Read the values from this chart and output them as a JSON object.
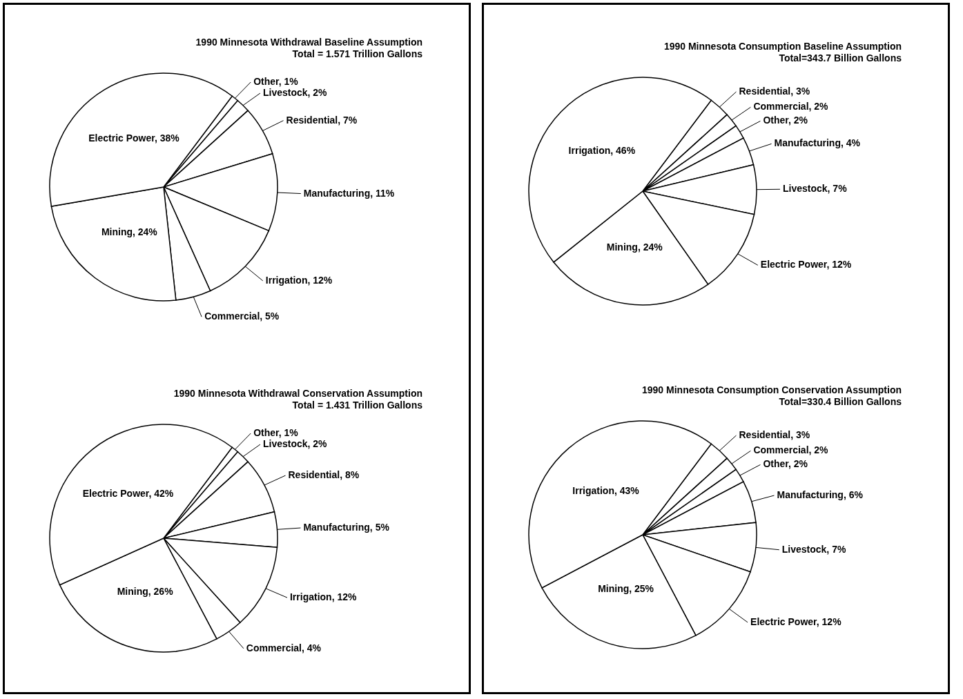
{
  "chart_data": [
    {
      "type": "pie",
      "title": "1990 Minnesota Withdrawal Baseline Assumption",
      "subtitle": "Total = 1.571 Trillion Gallons",
      "categories": [
        "Other",
        "Livestock",
        "Residential",
        "Manufacturing",
        "Irrigation",
        "Commercial",
        "Mining",
        "Electric Power"
      ],
      "values": [
        1,
        2,
        7,
        11,
        12,
        5,
        24,
        38
      ],
      "colors": [
        "#ffffff",
        "#ffffff",
        "#ffffff",
        "#ffffff",
        "#ffffff",
        "#ffffff",
        "#ffffff",
        "#ffffff"
      ],
      "value_labels": [
        "1%",
        "2%",
        "7%",
        "11%",
        "12%",
        "5%",
        "24%",
        "38%"
      ]
    },
    {
      "type": "pie",
      "title": "1990 Minnesota Withdrawal Conservation Assumption",
      "subtitle": "Total = 1.431 Trillion Gallons",
      "categories": [
        "Other",
        "Livestock",
        "Residential",
        "Manufacturing",
        "Irrigation",
        "Commercial",
        "Mining",
        "Electric Power"
      ],
      "values": [
        1,
        2,
        8,
        5,
        12,
        4,
        26,
        42
      ],
      "colors": [
        "#ffffff",
        "#ffffff",
        "#ffffff",
        "#ffffff",
        "#ffffff",
        "#ffffff",
        "#ffffff",
        "#ffffff"
      ],
      "value_labels": [
        "1%",
        "2%",
        "8%",
        "5%",
        "12%",
        "4%",
        "26%",
        "42%"
      ]
    },
    {
      "type": "pie",
      "title": "1990 Minnesota Consumption Baseline Assumption",
      "subtitle": "Total=343.7 Billion Gallons",
      "categories": [
        "Residential",
        "Commercial",
        "Other",
        "Manufacturing",
        "Livestock",
        "Electric Power",
        "Mining",
        "Irrigation"
      ],
      "values": [
        3,
        2,
        2,
        4,
        7,
        12,
        24,
        46
      ],
      "colors": [
        "#ffffff",
        "#ffffff",
        "#ffffff",
        "#ffffff",
        "#ffffff",
        "#ffffff",
        "#ffffff",
        "#ffffff"
      ],
      "value_labels": [
        "3%",
        "2%",
        "2%",
        "4%",
        "7%",
        "12%",
        "24%",
        "46%"
      ]
    },
    {
      "type": "pie",
      "title": "1990 Minnesota Consumption Conservation Assumption",
      "subtitle": "Total=330.4 Billion Gallons",
      "categories": [
        "Residential",
        "Commercial",
        "Other",
        "Manufacturing",
        "Livestock",
        "Electric Power",
        "Mining",
        "Irrigation"
      ],
      "values": [
        3,
        2,
        2,
        6,
        7,
        12,
        25,
        43
      ],
      "colors": [
        "#ffffff",
        "#ffffff",
        "#ffffff",
        "#ffffff",
        "#ffffff",
        "#ffffff",
        "#ffffff",
        "#ffffff"
      ],
      "value_labels": [
        "3%",
        "2%",
        "2%",
        "6%",
        "7%",
        "12%",
        "25%",
        "43%"
      ]
    }
  ]
}
